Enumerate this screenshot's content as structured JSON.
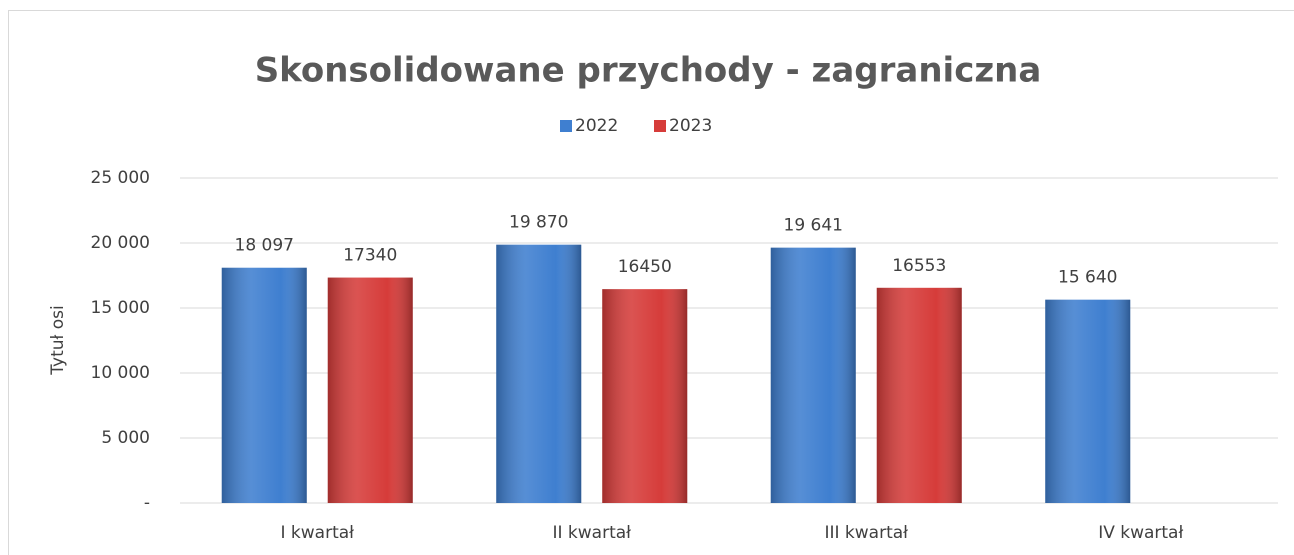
{
  "chart_data": {
    "type": "bar",
    "title": "Skonsolidowane przychody - zagraniczna",
    "y_label": "Tytuł osi",
    "categories": [
      "I kwartał",
      "II kwartał",
      "III kwartał",
      "IV kwartał"
    ],
    "series": [
      {
        "name": "2022",
        "color": "#3f7fd0",
        "values": [
          18097,
          19870,
          19641,
          15640
        ],
        "value_labels": [
          "18 097",
          "19 870",
          "19 641",
          "15 640"
        ]
      },
      {
        "name": "2023",
        "color": "#d63c3a",
        "values": [
          17340,
          16450,
          16553,
          null
        ],
        "value_labels": [
          "17340",
          "16450",
          "16553",
          null
        ]
      }
    ],
    "ylim": [
      0,
      25000
    ],
    "yticks": [
      {
        "value": 0,
        "label": "-"
      },
      {
        "value": 5000,
        "label": "5 000"
      },
      {
        "value": 10000,
        "label": "10 000"
      },
      {
        "value": 15000,
        "label": "15 000"
      },
      {
        "value": 20000,
        "label": "20 000"
      },
      {
        "value": 25000,
        "label": "25 000"
      }
    ],
    "grid": true,
    "legend": "top"
  }
}
